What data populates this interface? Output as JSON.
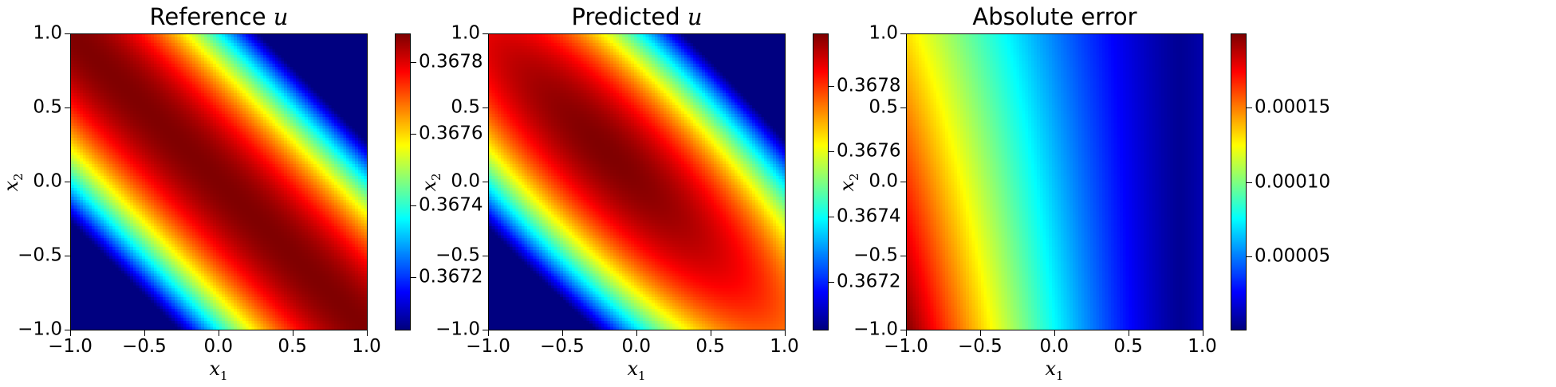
{
  "chart_data": [
    {
      "type": "heatmap",
      "title": "Reference u",
      "title_text": "Reference ",
      "title_var": "u",
      "xlabel": "x1",
      "ylabel": "x2",
      "xlim": [
        -1.0,
        1.0
      ],
      "ylim": [
        -1.0,
        1.0
      ],
      "xticks": [
        "−1.0",
        "−0.5",
        "0.0",
        "0.5",
        "1.0"
      ],
      "yticks": [
        "1.0",
        "0.5",
        "0.0",
        "−0.5",
        "−1.0"
      ],
      "colormap": "jet",
      "colorbar_range": [
        0.36705,
        0.36788
      ],
      "colorbar_ticks": [
        0.3672,
        0.3674,
        0.3676,
        0.3678
      ],
      "colorbar_tick_labels": [
        "0.3672",
        "0.3674",
        "0.3676",
        "0.3678"
      ],
      "pattern": "maximum along the diagonal x1 = −x2, decreasing toward corners (−1,−1) and (1,1)"
    },
    {
      "type": "heatmap",
      "title": "Predicted u",
      "title_text": "Predicted ",
      "title_var": "u",
      "xlabel": "x1",
      "ylabel": "x2",
      "xlim": [
        -1.0,
        1.0
      ],
      "ylim": [
        -1.0,
        1.0
      ],
      "xticks": [
        "−1.0",
        "−0.5",
        "0.0",
        "0.5",
        "1.0"
      ],
      "yticks": [
        "1.0",
        "0.5",
        "0.0",
        "−0.5",
        "−1.0"
      ],
      "colormap": "jet",
      "colorbar_range": [
        0.36705,
        0.36796
      ],
      "colorbar_ticks": [
        0.3672,
        0.3674,
        0.3676,
        0.3678
      ],
      "colorbar_tick_labels": [
        "0.3672",
        "0.3674",
        "0.3676",
        "0.3678"
      ],
      "pattern": "maximum near (−0.2, 0.2) along the anti-diagonal, decreasing toward corners"
    },
    {
      "type": "heatmap",
      "title": "Absolute error",
      "title_text": "Absolute error",
      "title_var": "",
      "xlabel": "x1",
      "ylabel": "x2",
      "xlim": [
        -1.0,
        1.0
      ],
      "ylim": [
        -1.0,
        1.0
      ],
      "xticks": [
        "−1.0",
        "−0.5",
        "0.0",
        "0.5",
        "1.0"
      ],
      "yticks": [
        "1.0",
        "0.5",
        "0.0",
        "−0.5",
        "−1.0"
      ],
      "colormap": "jet",
      "colorbar_range": [
        0.0,
        0.0002
      ],
      "colorbar_ticks": [
        5e-05,
        0.0001,
        0.00015
      ],
      "colorbar_tick_labels": [
        "0.00005",
        "0.00010",
        "0.00015"
      ],
      "pattern": "maximum (~0.0002) at corner (−1,−1), minimum near x1 ≈ 0.85, decreasing radially"
    }
  ]
}
